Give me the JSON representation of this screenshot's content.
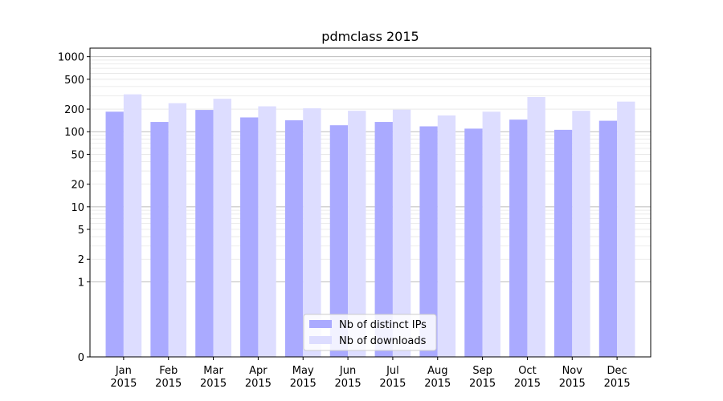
{
  "chart_data": {
    "type": "bar",
    "title": "pdmclass 2015",
    "xlabel": "",
    "ylabel": "",
    "yscale": "symlog",
    "ylim": [
      0,
      1300
    ],
    "yticks": [
      0,
      1,
      2,
      5,
      10,
      20,
      50,
      100,
      200,
      500,
      1000
    ],
    "ytick_labels": [
      "0",
      "1",
      "2",
      "5",
      "10",
      "20",
      "50",
      "100",
      "200",
      "500",
      "1000"
    ],
    "grid": true,
    "legend_position": "lower center",
    "categories": [
      "Jan\n2015",
      "Feb\n2015",
      "Mar\n2015",
      "Apr\n2015",
      "May\n2015",
      "Jun\n2015",
      "Jul\n2015",
      "Aug\n2015",
      "Sep\n2015",
      "Oct\n2015",
      "Nov\n2015",
      "Dec\n2015"
    ],
    "series": [
      {
        "name": "Nb of distinct IPs",
        "color": "#aaaaff",
        "values": [
          185,
          135,
          195,
          155,
          142,
          122,
          135,
          118,
          110,
          145,
          106,
          140
        ]
      },
      {
        "name": "Nb of downloads",
        "color": "#ddddff",
        "values": [
          315,
          240,
          275,
          218,
          205,
          190,
          197,
          165,
          185,
          290,
          190,
          252
        ]
      }
    ]
  }
}
